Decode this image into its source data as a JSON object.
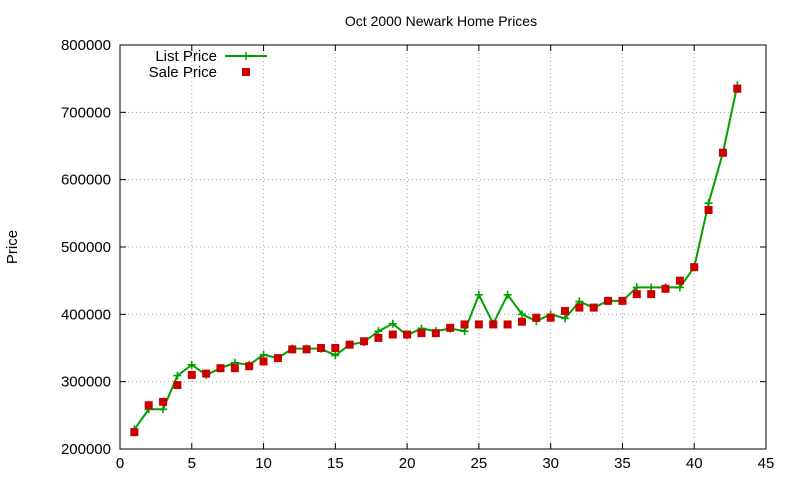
{
  "chart_data": {
    "type": "line",
    "title": "Oct 2000 Newark Home Prices",
    "xlabel": "",
    "ylabel": "Price",
    "xlim": [
      0,
      45
    ],
    "ylim": [
      200000,
      800000
    ],
    "xticks": [
      "0",
      "5",
      "10",
      "15",
      "20",
      "25",
      "30",
      "35",
      "40",
      "45"
    ],
    "yticks": [
      "200000",
      "300000",
      "400000",
      "500000",
      "600000",
      "700000",
      "800000"
    ],
    "grid": true,
    "legend_position": "top-left",
    "x": [
      1,
      2,
      3,
      4,
      5,
      6,
      7,
      8,
      9,
      10,
      11,
      12,
      13,
      14,
      15,
      16,
      17,
      18,
      19,
      20,
      21,
      22,
      23,
      24,
      25,
      26,
      27,
      28,
      29,
      30,
      31,
      32,
      33,
      34,
      35,
      36,
      37,
      38,
      39,
      40,
      41,
      42,
      43
    ],
    "series": [
      {
        "name": "List Price",
        "style": "line+cross",
        "color": "#00a000",
        "values": [
          229000,
          259000,
          259000,
          309000,
          325000,
          310000,
          320000,
          328000,
          325000,
          340000,
          335000,
          349000,
          349000,
          349000,
          339000,
          355000,
          359000,
          375000,
          386000,
          369000,
          379000,
          375000,
          379000,
          375000,
          429000,
          386000,
          429000,
          400000,
          390000,
          400000,
          394000,
          419000,
          410000,
          420000,
          420000,
          440000,
          440000,
          440000,
          440000,
          470000,
          565000,
          640000,
          740000
        ]
      },
      {
        "name": "Sale Price",
        "style": "square",
        "color": "#cc0000",
        "values": [
          225000,
          265000,
          270000,
          295000,
          310000,
          312000,
          320000,
          320000,
          323000,
          330000,
          335000,
          348000,
          348000,
          350000,
          350000,
          355000,
          360000,
          365000,
          370000,
          370000,
          372000,
          372000,
          380000,
          385000,
          385000,
          385000,
          385000,
          389000,
          395000,
          395000,
          405000,
          410000,
          410000,
          420000,
          420000,
          430000,
          430000,
          438000,
          450000,
          470000,
          555000,
          640000,
          735000
        ]
      }
    ]
  }
}
